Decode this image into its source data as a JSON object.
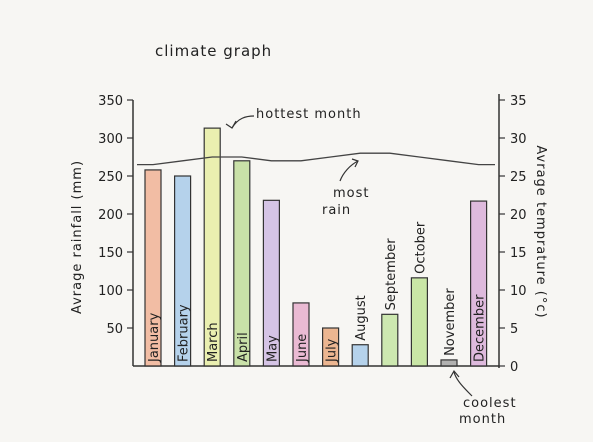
{
  "chart_data": {
    "type": "bar",
    "title": "climate graph",
    "categories": [
      "January",
      "February",
      "March",
      "April",
      "May",
      "June",
      "July",
      "August",
      "September",
      "October",
      "November",
      "December"
    ],
    "series": [
      {
        "values": [
          258,
          250,
          313,
          270,
          218,
          83,
          50,
          28,
          68,
          116,
          8,
          217
        ]
      }
    ],
    "temperature_line": {
      "values": [
        26.5,
        27,
        27.5,
        27.5,
        27,
        27,
        27.5,
        28,
        28,
        27.5,
        27,
        26.5
      ]
    },
    "ylabel_left": "Avrage rainfall (mm)",
    "ylabel_right": "Avrage temprature (°c)",
    "ylim_left": [
      0,
      350
    ],
    "ylim_right": [
      0,
      35
    ],
    "yticks_left": [
      "350",
      "300",
      "250",
      "200",
      "150",
      "100",
      "50"
    ],
    "yticks_right": [
      "35",
      "30",
      "25",
      "20",
      "15",
      "10",
      "5",
      "0"
    ],
    "annotations": {
      "hottest": "hottest month",
      "most_rain": "most rain",
      "coolest": "coolest month"
    },
    "colors": [
      "#f0a98a",
      "#9fc6e8",
      "#e6ec9a",
      "#b9d98f",
      "#c9b3e0",
      "#e6a6c8",
      "#e8a070",
      "#9fc6e8",
      "#bfe39a",
      "#b9e08c",
      "#9a9a9a",
      "#d6a6d6"
    ]
  }
}
